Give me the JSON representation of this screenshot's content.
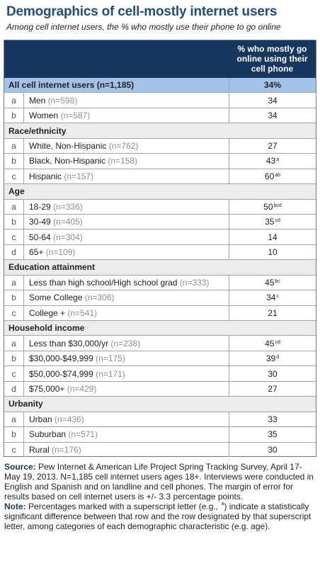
{
  "title": "Demographics of cell-mostly internet users",
  "subtitle": "Among cell internet users, the % who mostly use their phone to go online",
  "column_header": "% who mostly go online using their cell phone",
  "rows": [
    {
      "kind": "total",
      "label": "All cell internet users (n=1,185)",
      "value": "34%"
    },
    {
      "kind": "item",
      "letter": "a",
      "label": "Men",
      "n": "(n=598)",
      "value": "34",
      "sup": ""
    },
    {
      "kind": "item",
      "letter": "b",
      "label": "Women",
      "n": "(n=587)",
      "value": "34",
      "sup": ""
    },
    {
      "kind": "section",
      "label": "Race/ethnicity"
    },
    {
      "kind": "item",
      "letter": "a",
      "label": "White, Non-Hispanic",
      "n": "(n=762)",
      "value": "27",
      "sup": ""
    },
    {
      "kind": "item",
      "letter": "b",
      "label": "Black, Non-Hispanic",
      "n": "(n=158)",
      "value": "43",
      "sup": "a"
    },
    {
      "kind": "item",
      "letter": "c",
      "label": "Hispanic",
      "n": "(n=157)",
      "value": "60",
      "sup": "ab"
    },
    {
      "kind": "section",
      "label": "Age"
    },
    {
      "kind": "item",
      "letter": "a",
      "label": "18-29",
      "n": "(n=336)",
      "value": "50",
      "sup": "bcd"
    },
    {
      "kind": "item",
      "letter": "b",
      "label": "30-49",
      "n": "(n=405)",
      "value": "35",
      "sup": "cd"
    },
    {
      "kind": "item",
      "letter": "c",
      "label": "50-64",
      "n": "(n=304)",
      "value": "14",
      "sup": ""
    },
    {
      "kind": "item",
      "letter": "d",
      "label": "65+",
      "n": "(n=109)",
      "value": "10",
      "sup": ""
    },
    {
      "kind": "section",
      "label": "Education attainment"
    },
    {
      "kind": "item",
      "letter": "a",
      "label": "Less than high school/High school grad",
      "n": "(n=333)",
      "value": "45",
      "sup": "bc"
    },
    {
      "kind": "item",
      "letter": "b",
      "label": "Some College",
      "n": "(n=306)",
      "value": "34",
      "sup": "c"
    },
    {
      "kind": "item",
      "letter": "c",
      "label": "College +",
      "n": "(n=541)",
      "value": "21",
      "sup": ""
    },
    {
      "kind": "section",
      "label": "Household income"
    },
    {
      "kind": "item",
      "letter": "a",
      "label": "Less than $30,000/yr",
      "n": "(n=238)",
      "value": "45",
      "sup": "cd"
    },
    {
      "kind": "item",
      "letter": "b",
      "label": "$30,000-$49,999",
      "n": "(n=175)",
      "value": "39",
      "sup": "d"
    },
    {
      "kind": "item",
      "letter": "c",
      "label": "$50,000-$74,999",
      "n": "(n=171)",
      "value": "30",
      "sup": ""
    },
    {
      "kind": "item",
      "letter": "d",
      "label": "$75,000+",
      "n": "(n=429)",
      "value": "27",
      "sup": ""
    },
    {
      "kind": "section",
      "label": "Urbanity"
    },
    {
      "kind": "item",
      "letter": "a",
      "label": "Urban",
      "n": "(n=436)",
      "value": "33",
      "sup": ""
    },
    {
      "kind": "item",
      "letter": "b",
      "label": "Suburban",
      "n": "(n=571)",
      "value": "35",
      "sup": ""
    },
    {
      "kind": "item",
      "letter": "c",
      "label": "Rural",
      "n": "(n=176)",
      "value": "30",
      "sup": ""
    }
  ],
  "footer": {
    "source_label": "Source:",
    "source_text": "Pew Internet & American Life Project Spring Tracking Survey, April 17-May 19, 2013.  N=1,185 cell internet users ages 18+.  Interviews were conducted in English and Spanish and on landline and cell phones.  The margin of error for results based on cell internet users is +/- 3.3 percentage points.",
    "note_label": "Note:",
    "note_text_before": "Percentages marked with a superscript letter (e.g., ",
    "note_sup": "a",
    "note_text_after": ") indicate a statistically significant difference between that row and the row designated by that superscript letter, among categories of each demographic characteristic (e.g. age)."
  },
  "colors": {
    "title": "#1f4e79",
    "header_bg": "#17375e",
    "total_bg": "#a4c2e8",
    "section_bg": "#ececec",
    "n_text": "#8f8f8f"
  }
}
